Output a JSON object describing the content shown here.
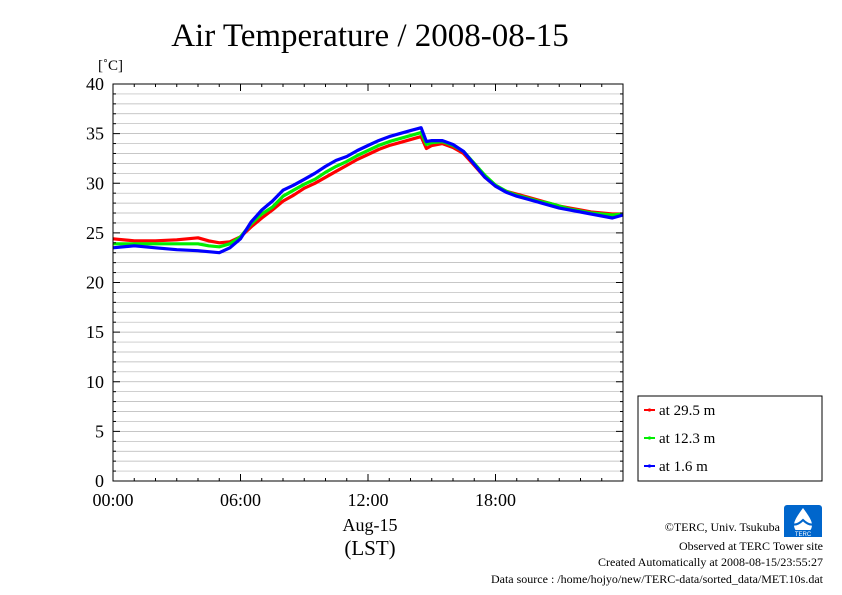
{
  "chart_data": {
    "type": "line",
    "title": "Air Temperature / 2008-08-15",
    "ylabel": "[˚C]",
    "xlabel_date": "Aug-15",
    "xlabel_tz": "(LST)",
    "ylim": [
      0,
      40
    ],
    "yticks": [
      0,
      5,
      10,
      15,
      20,
      25,
      30,
      35,
      40
    ],
    "xlim": [
      0,
      24
    ],
    "xticks": [
      {
        "hour": 0,
        "label": "00:00"
      },
      {
        "hour": 6,
        "label": "06:00"
      },
      {
        "hour": 12,
        "label": "12:00"
      },
      {
        "hour": 18,
        "label": "18:00"
      }
    ],
    "grid": true,
    "legend_position": "bottom-right-outside",
    "series": [
      {
        "name": "at 29.5 m",
        "color": "#ff0000",
        "points": [
          [
            0,
            24.4
          ],
          [
            1,
            24.2
          ],
          [
            2,
            24.2
          ],
          [
            3,
            24.3
          ],
          [
            4,
            24.5
          ],
          [
            4.5,
            24.2
          ],
          [
            5,
            24.0
          ],
          [
            5.5,
            24.1
          ],
          [
            6,
            24.6
          ],
          [
            6.5,
            25.6
          ],
          [
            7,
            26.5
          ],
          [
            7.5,
            27.3
          ],
          [
            8,
            28.2
          ],
          [
            8.5,
            28.8
          ],
          [
            9,
            29.5
          ],
          [
            9.5,
            30.0
          ],
          [
            10,
            30.6
          ],
          [
            10.5,
            31.2
          ],
          [
            11,
            31.8
          ],
          [
            11.5,
            32.4
          ],
          [
            12,
            32.9
          ],
          [
            12.5,
            33.4
          ],
          [
            13,
            33.8
          ],
          [
            13.5,
            34.1
          ],
          [
            14,
            34.4
          ],
          [
            14.5,
            34.7
          ],
          [
            14.75,
            33.5
          ],
          [
            15,
            33.8
          ],
          [
            15.5,
            34.0
          ],
          [
            16,
            33.6
          ],
          [
            16.5,
            33.0
          ],
          [
            17,
            31.8
          ],
          [
            17.5,
            30.6
          ],
          [
            18,
            29.7
          ],
          [
            18.5,
            29.2
          ],
          [
            19,
            28.9
          ],
          [
            19.5,
            28.6
          ],
          [
            20,
            28.3
          ],
          [
            20.5,
            28.0
          ],
          [
            21,
            27.7
          ],
          [
            21.5,
            27.5
          ],
          [
            22,
            27.3
          ],
          [
            22.5,
            27.1
          ],
          [
            23,
            27.0
          ],
          [
            23.5,
            26.9
          ],
          [
            24,
            26.9
          ]
        ]
      },
      {
        "name": "at 12.3 m",
        "color": "#00ee00",
        "points": [
          [
            0,
            23.9
          ],
          [
            1,
            23.9
          ],
          [
            2,
            23.9
          ],
          [
            3,
            23.9
          ],
          [
            4,
            23.9
          ],
          [
            4.5,
            23.7
          ],
          [
            5,
            23.6
          ],
          [
            5.5,
            23.9
          ],
          [
            6,
            24.6
          ],
          [
            6.5,
            25.9
          ],
          [
            7,
            26.9
          ],
          [
            7.5,
            27.6
          ],
          [
            8,
            28.7
          ],
          [
            8.5,
            29.3
          ],
          [
            9,
            29.9
          ],
          [
            9.5,
            30.4
          ],
          [
            10,
            31.1
          ],
          [
            10.5,
            31.7
          ],
          [
            11,
            32.2
          ],
          [
            11.5,
            32.8
          ],
          [
            12,
            33.3
          ],
          [
            12.5,
            33.8
          ],
          [
            13,
            34.2
          ],
          [
            13.5,
            34.5
          ],
          [
            14,
            34.8
          ],
          [
            14.5,
            35.1
          ],
          [
            14.75,
            33.9
          ],
          [
            15,
            34.1
          ],
          [
            15.5,
            34.2
          ],
          [
            16,
            33.8
          ],
          [
            16.5,
            33.2
          ],
          [
            17,
            32.0
          ],
          [
            17.5,
            30.8
          ],
          [
            18,
            29.8
          ],
          [
            18.5,
            29.2
          ],
          [
            19,
            28.8
          ],
          [
            19.5,
            28.5
          ],
          [
            20,
            28.2
          ],
          [
            20.5,
            28.0
          ],
          [
            21,
            27.7
          ],
          [
            21.5,
            27.4
          ],
          [
            22,
            27.2
          ],
          [
            22.5,
            27.0
          ],
          [
            23,
            26.9
          ],
          [
            23.5,
            26.8
          ],
          [
            24,
            26.9
          ]
        ]
      },
      {
        "name": "at 1.6 m",
        "color": "#0000ff",
        "points": [
          [
            0,
            23.5
          ],
          [
            1,
            23.7
          ],
          [
            2,
            23.5
          ],
          [
            3,
            23.3
          ],
          [
            4,
            23.2
          ],
          [
            4.5,
            23.1
          ],
          [
            5,
            23.0
          ],
          [
            5.5,
            23.5
          ],
          [
            6,
            24.4
          ],
          [
            6.5,
            26.1
          ],
          [
            7,
            27.3
          ],
          [
            7.5,
            28.2
          ],
          [
            8,
            29.3
          ],
          [
            8.5,
            29.8
          ],
          [
            9,
            30.4
          ],
          [
            9.5,
            31.0
          ],
          [
            10,
            31.7
          ],
          [
            10.5,
            32.3
          ],
          [
            11,
            32.7
          ],
          [
            11.5,
            33.3
          ],
          [
            12,
            33.8
          ],
          [
            12.5,
            34.3
          ],
          [
            13,
            34.7
          ],
          [
            13.5,
            35.0
          ],
          [
            14,
            35.3
          ],
          [
            14.5,
            35.6
          ],
          [
            14.75,
            34.2
          ],
          [
            15,
            34.3
          ],
          [
            15.5,
            34.3
          ],
          [
            16,
            33.9
          ],
          [
            16.5,
            33.2
          ],
          [
            17,
            31.9
          ],
          [
            17.5,
            30.6
          ],
          [
            18,
            29.7
          ],
          [
            18.5,
            29.1
          ],
          [
            19,
            28.7
          ],
          [
            19.5,
            28.4
          ],
          [
            20,
            28.1
          ],
          [
            20.5,
            27.8
          ],
          [
            21,
            27.5
          ],
          [
            21.5,
            27.3
          ],
          [
            22,
            27.1
          ],
          [
            22.5,
            26.9
          ],
          [
            23,
            26.7
          ],
          [
            23.5,
            26.5
          ],
          [
            24,
            26.8
          ]
        ]
      }
    ]
  },
  "footer": {
    "copyright": "©TERC, Univ. Tsukuba",
    "observed": "Observed at TERC Tower site",
    "created": "Created Automatically at 2008-08-15/23:55:27",
    "source": "Data source : /home/hojyo/new/TERC-data/sorted_data/MET.10s.dat"
  },
  "logo": {
    "text": "TERC",
    "color": "#0066cc"
  }
}
